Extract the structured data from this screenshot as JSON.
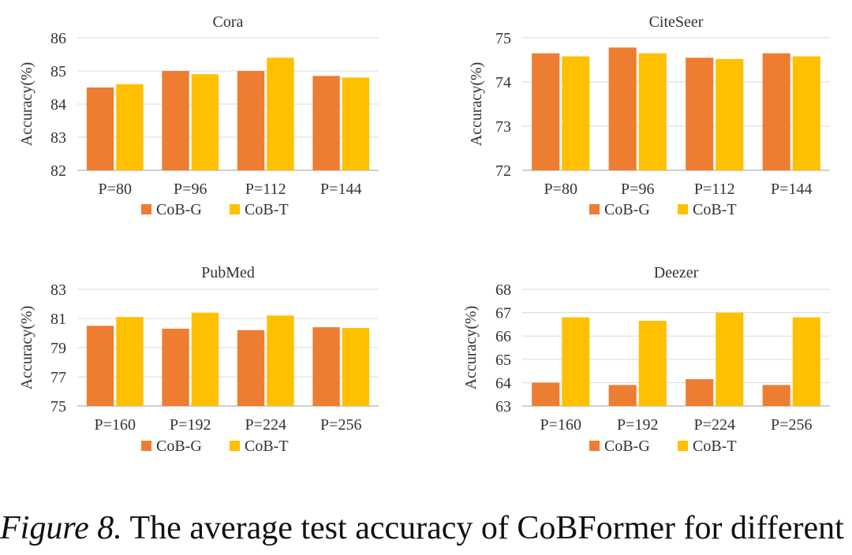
{
  "caption": {
    "label": "Figure 8.",
    "text": "The average test accuracy of CoBFormer for different P."
  },
  "colors": {
    "cob_g": "#ED7D31",
    "cob_t": "#FFC000",
    "grid": "#D9D9D9",
    "axis": "#BFBFBF"
  },
  "chart_data": [
    {
      "type": "bar",
      "title": "Cora",
      "ylabel": "Accuracy(%)",
      "xlabel": "",
      "ylim": [
        82,
        86
      ],
      "yticks": [
        82,
        83,
        84,
        85,
        86
      ],
      "categories": [
        "P=80",
        "P=96",
        "P=112",
        "P=144"
      ],
      "series": [
        {
          "name": "CoB-G",
          "values": [
            84.5,
            85.0,
            85.0,
            84.85
          ]
        },
        {
          "name": "CoB-T",
          "values": [
            84.6,
            84.9,
            85.4,
            84.8
          ]
        }
      ],
      "legend": "bottom"
    },
    {
      "type": "bar",
      "title": "CiteSeer",
      "ylabel": "Accuracy(%)",
      "xlabel": "",
      "ylim": [
        72,
        75
      ],
      "yticks": [
        72,
        73,
        74,
        75
      ],
      "categories": [
        "P=80",
        "P=96",
        "P=112",
        "P=144"
      ],
      "series": [
        {
          "name": "CoB-G",
          "values": [
            74.65,
            74.78,
            74.55,
            74.65
          ]
        },
        {
          "name": "CoB-T",
          "values": [
            74.58,
            74.65,
            74.52,
            74.58
          ]
        }
      ],
      "legend": "bottom"
    },
    {
      "type": "bar",
      "title": "PubMed",
      "ylabel": "Accuracy(%)",
      "xlabel": "",
      "ylim": [
        75,
        83
      ],
      "yticks": [
        75,
        77,
        79,
        81,
        83
      ],
      "categories": [
        "P=160",
        "P=192",
        "P=224",
        "P=256"
      ],
      "series": [
        {
          "name": "CoB-G",
          "values": [
            80.5,
            80.3,
            80.2,
            80.4
          ]
        },
        {
          "name": "CoB-T",
          "values": [
            81.1,
            81.4,
            81.2,
            80.35
          ]
        }
      ],
      "legend": "bottom"
    },
    {
      "type": "bar",
      "title": "Deezer",
      "ylabel": "Accuracy(%)",
      "xlabel": "",
      "ylim": [
        63,
        68
      ],
      "yticks": [
        63,
        64,
        65,
        66,
        67,
        68
      ],
      "categories": [
        "P=160",
        "P=192",
        "P=224",
        "P=256"
      ],
      "series": [
        {
          "name": "CoB-G",
          "values": [
            64.0,
            63.9,
            64.15,
            63.9
          ]
        },
        {
          "name": "CoB-T",
          "values": [
            66.8,
            66.65,
            67.0,
            66.8
          ]
        }
      ],
      "legend": "bottom"
    }
  ]
}
